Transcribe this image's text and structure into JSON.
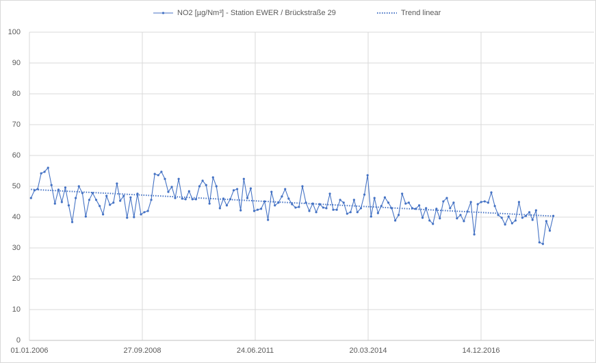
{
  "chart_data": {
    "type": "line",
    "series": [
      {
        "name": "NO2 [µg/Nm³] - Station EWER / Brückstraße 29",
        "color": "#4472c4",
        "x": [
          "2006-01",
          "2006-02",
          "2006-03",
          "2006-04",
          "2006-05",
          "2006-06",
          "2006-07",
          "2006-08",
          "2006-09",
          "2006-10",
          "2006-11",
          "2006-12",
          "2007-01",
          "2007-02",
          "2007-03",
          "2007-04",
          "2007-05",
          "2007-06",
          "2007-07",
          "2007-08",
          "2007-09",
          "2007-10",
          "2007-11",
          "2007-12",
          "2008-01",
          "2008-02",
          "2008-03",
          "2008-04",
          "2008-05",
          "2008-06",
          "2008-07",
          "2008-08",
          "2008-09",
          "2008-10",
          "2008-11",
          "2008-12",
          "2009-01",
          "2009-02",
          "2009-03",
          "2009-04",
          "2009-05",
          "2009-06",
          "2009-07",
          "2009-08",
          "2009-09",
          "2009-10",
          "2009-11",
          "2009-12",
          "2010-01",
          "2010-02",
          "2010-03",
          "2010-04",
          "2010-05",
          "2010-06",
          "2010-07",
          "2010-08",
          "2010-09",
          "2010-10",
          "2010-11",
          "2010-12",
          "2011-01",
          "2011-02",
          "2011-03",
          "2011-04",
          "2011-05",
          "2011-06",
          "2011-07",
          "2011-08",
          "2011-09",
          "2011-10",
          "2011-11",
          "2011-12",
          "2012-01",
          "2012-02",
          "2012-03",
          "2012-04",
          "2012-05",
          "2012-06",
          "2012-07",
          "2012-08",
          "2012-09",
          "2012-10",
          "2012-11",
          "2012-12",
          "2013-01",
          "2013-02",
          "2013-03",
          "2013-04",
          "2013-05",
          "2013-06",
          "2013-07",
          "2013-08",
          "2013-09",
          "2013-10",
          "2013-11",
          "2013-12",
          "2014-01",
          "2014-02",
          "2014-03",
          "2014-04",
          "2014-05",
          "2014-06",
          "2014-07",
          "2014-08",
          "2014-09",
          "2014-10",
          "2014-11",
          "2014-12",
          "2015-01",
          "2015-02",
          "2015-03",
          "2015-04",
          "2015-05",
          "2015-06",
          "2015-07",
          "2015-08",
          "2015-09",
          "2015-10",
          "2015-11",
          "2015-12",
          "2016-01",
          "2016-02",
          "2016-03",
          "2016-04",
          "2016-05",
          "2016-06",
          "2016-07",
          "2016-08",
          "2016-09",
          "2016-10",
          "2016-11",
          "2016-12",
          "2017-01",
          "2017-02",
          "2017-03",
          "2017-04",
          "2017-05",
          "2017-06",
          "2017-07",
          "2017-08",
          "2017-09",
          "2017-10",
          "2017-11",
          "2017-12",
          "2018-01",
          "2018-02",
          "2018-03",
          "2018-04",
          "2018-05",
          "2018-06",
          "2018-07",
          "2018-08",
          "2018-09"
        ],
        "values": [
          46.2,
          48.7,
          49.1,
          54.2,
          54.7,
          56,
          50.4,
          44.4,
          48.9,
          44.9,
          49.6,
          43.8,
          38.4,
          46.2,
          50,
          47.8,
          40.2,
          45.6,
          47.8,
          45.6,
          43.6,
          40.9,
          46.9,
          44,
          44.7,
          50.9,
          45.3,
          46.9,
          39.8,
          46.4,
          40,
          47.6,
          40.9,
          41.6,
          42,
          45.6,
          54,
          53.6,
          54.7,
          52.4,
          48.2,
          49.8,
          46.2,
          52.4,
          46,
          45.8,
          48.4,
          45.8,
          45.8,
          50,
          51.8,
          50.4,
          44.4,
          52.9,
          50,
          42.9,
          46,
          43.8,
          45.8,
          48.7,
          49.1,
          42.2,
          52.4,
          46.2,
          49.3,
          42,
          42.4,
          42.7,
          45.1,
          39.1,
          48.2,
          43.8,
          44.7,
          46.7,
          49.1,
          46,
          44.2,
          43.1,
          43.3,
          50,
          44.7,
          42,
          44.4,
          41.6,
          44.2,
          43.1,
          42.9,
          47.6,
          42.4,
          42.4,
          45.6,
          44.7,
          41.1,
          41.6,
          45.6,
          41.6,
          42.9,
          47.3,
          53.6,
          40.2,
          46.2,
          41.3,
          43.6,
          46.4,
          44.7,
          42.9,
          38.9,
          40.7,
          47.6,
          44.4,
          44.7,
          42.9,
          42.7,
          43.8,
          39.8,
          42.9,
          38.9,
          37.8,
          42.7,
          39.6,
          45.1,
          46.2,
          42.9,
          44.7,
          39.6,
          40.7,
          38.7,
          41.8,
          44.9,
          34.4,
          44.2,
          44.9,
          45.1,
          44.7,
          48,
          43.6,
          40.7,
          39.8,
          37.6,
          40.2,
          38,
          38.9,
          44.9,
          39.8,
          40.4,
          41.6,
          39.1,
          42.2,
          31.8,
          31.3,
          38.7,
          35.6,
          40.4
        ]
      },
      {
        "name": "Trend linear",
        "color": "#4472c4",
        "style": "dotted",
        "x": [
          "2006-01",
          "2018-09"
        ],
        "values": [
          49.0,
          40.3
        ]
      }
    ],
    "xlim": [
      "2006-01-01",
      "2019-09-10"
    ],
    "xticks": [
      {
        "value": "2006-01-01",
        "label": "01.01.2006"
      },
      {
        "value": "2008-09-27",
        "label": "27.09.2008"
      },
      {
        "value": "2011-06-24",
        "label": "24.06.2011"
      },
      {
        "value": "2014-03-20",
        "label": "20.03.2014"
      },
      {
        "value": "2016-12-14",
        "label": "14.12.2016"
      }
    ],
    "ylim": [
      0,
      100
    ],
    "yticks": [
      0,
      10,
      20,
      30,
      40,
      50,
      60,
      70,
      80,
      90,
      100
    ],
    "grid": true,
    "legend": "top"
  }
}
